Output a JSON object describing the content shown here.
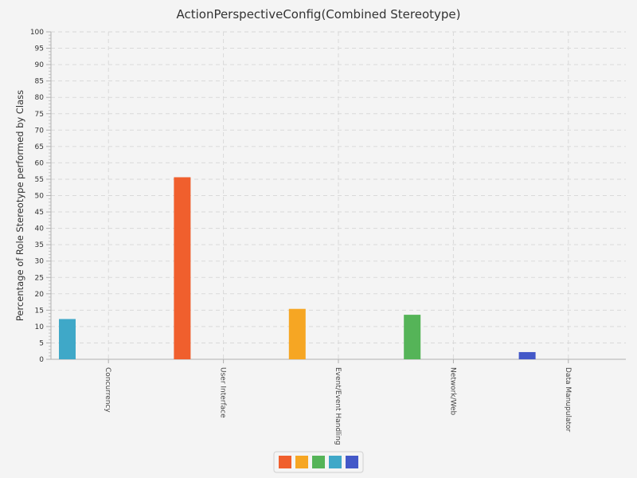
{
  "chart_data": {
    "type": "bar",
    "title": "ActionPerspectiveConfig(Combined Stereotype)",
    "xlabel": "",
    "ylabel": "Percentage of Role Stereotype performed by Class",
    "ylim": [
      0,
      100
    ],
    "ytick_step": 5,
    "grid": true,
    "legend_position": "bottom",
    "categories": [
      "Concurrency",
      "User Interface",
      "Event/Event Handling",
      "Network/Web",
      "Data Manupulator"
    ],
    "series": [
      {
        "color": "#f05f2d",
        "values": [
          0,
          55.6,
          0,
          0,
          0
        ]
      },
      {
        "color": "#f6a623",
        "values": [
          0,
          0,
          15.4,
          0,
          0
        ]
      },
      {
        "color": "#55b458",
        "values": [
          0,
          0,
          0,
          13.6,
          0
        ]
      },
      {
        "color": "#3fa8c8",
        "values": [
          12.3,
          0,
          0,
          0,
          0
        ]
      },
      {
        "color": "#4358c8",
        "values": [
          0,
          0,
          0,
          0,
          2.2
        ]
      }
    ]
  }
}
